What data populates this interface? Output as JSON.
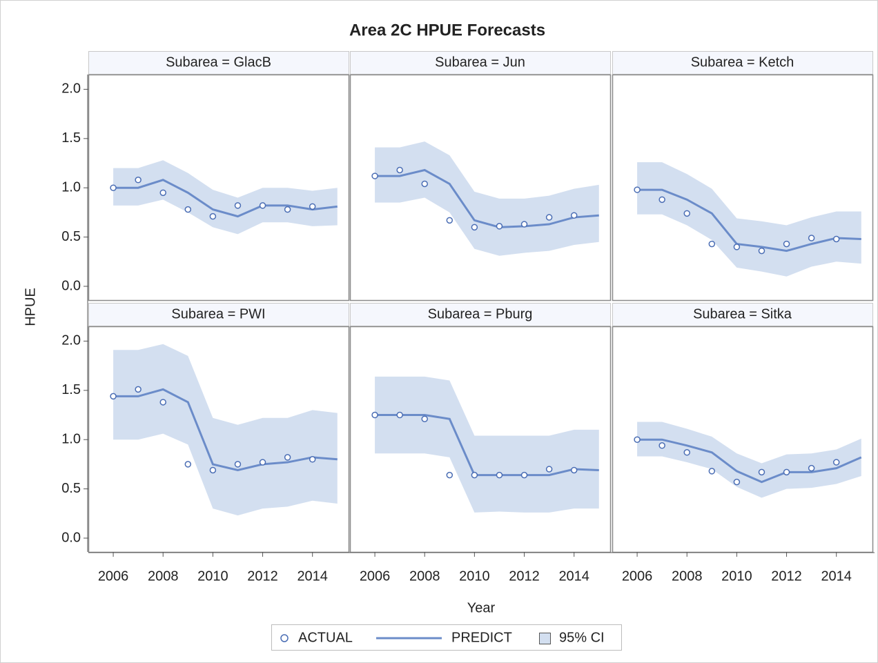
{
  "chart_data": {
    "type": "line",
    "title": "Area 2C HPUE Forecasts",
    "x_label": "Year",
    "y_label": "HPUE",
    "x": [
      2006,
      2007,
      2008,
      2009,
      2010,
      2011,
      2012,
      2013,
      2014,
      2015
    ],
    "xlim": [
      2005,
      2015.45
    ],
    "xticks": [
      2006,
      2008,
      2010,
      2012,
      2014
    ],
    "ylim": [
      -0.14,
      2.15
    ],
    "yticks": [
      {
        "value": 0,
        "label": "0.0"
      },
      0.5,
      {
        "value": 1,
        "label": "1.0"
      },
      1.5,
      {
        "value": 2,
        "label": "2.0"
      }
    ],
    "series": [
      {
        "name": "ACTUAL",
        "color": "#4a6db4"
      },
      {
        "name": "PREDICT",
        "color": "#6b8cc9"
      },
      {
        "name": "95% CI",
        "color": "#d3dff0"
      }
    ],
    "panels": [
      {
        "title": "Subarea = GlacB",
        "actual": [
          1.0,
          1.08,
          0.95,
          0.78,
          0.71,
          0.82,
          0.82,
          0.78,
          0.81,
          null
        ],
        "predict": [
          1.0,
          1.0,
          1.08,
          0.95,
          0.78,
          0.71,
          0.82,
          0.82,
          0.78,
          0.81
        ],
        "ci_lower": [
          0.82,
          0.82,
          0.88,
          0.75,
          0.6,
          0.53,
          0.65,
          0.65,
          0.61,
          0.62
        ],
        "ci_upper": [
          1.2,
          1.2,
          1.28,
          1.15,
          0.98,
          0.9,
          1.0,
          1.0,
          0.97,
          1.0
        ]
      },
      {
        "title": "Subarea = Jun",
        "actual": [
          1.12,
          1.18,
          1.04,
          0.67,
          0.6,
          0.61,
          0.63,
          0.7,
          0.72,
          null
        ],
        "predict": [
          1.12,
          1.12,
          1.18,
          1.04,
          0.67,
          0.6,
          0.61,
          0.63,
          0.7,
          0.72
        ],
        "ci_lower": [
          0.85,
          0.85,
          0.9,
          0.75,
          0.38,
          0.31,
          0.34,
          0.36,
          0.42,
          0.45
        ],
        "ci_upper": [
          1.41,
          1.41,
          1.47,
          1.33,
          0.96,
          0.89,
          0.89,
          0.92,
          0.99,
          1.03
        ]
      },
      {
        "title": "Subarea = Ketch",
        "actual": [
          0.98,
          0.88,
          0.74,
          0.43,
          0.4,
          0.36,
          0.43,
          0.49,
          0.48,
          null
        ],
        "predict": [
          0.98,
          0.98,
          0.88,
          0.74,
          0.43,
          0.4,
          0.36,
          0.43,
          0.49,
          0.48
        ],
        "ci_lower": [
          0.73,
          0.73,
          0.62,
          0.47,
          0.19,
          0.15,
          0.1,
          0.2,
          0.25,
          0.23
        ],
        "ci_upper": [
          1.26,
          1.26,
          1.14,
          0.99,
          0.69,
          0.66,
          0.62,
          0.7,
          0.76,
          0.76
        ]
      },
      {
        "title": "Subarea = PWI",
        "actual": [
          1.44,
          1.51,
          1.38,
          0.75,
          0.69,
          0.75,
          0.77,
          0.82,
          0.8,
          null
        ],
        "predict": [
          1.44,
          1.44,
          1.51,
          1.38,
          0.75,
          0.69,
          0.75,
          0.77,
          0.82,
          0.8
        ],
        "ci_lower": [
          1.0,
          1.0,
          1.06,
          0.95,
          0.3,
          0.23,
          0.3,
          0.32,
          0.38,
          0.35
        ],
        "ci_upper": [
          1.91,
          1.91,
          1.97,
          1.85,
          1.22,
          1.15,
          1.22,
          1.22,
          1.3,
          1.27
        ]
      },
      {
        "title": "Subarea = Pburg",
        "actual": [
          1.25,
          1.25,
          1.21,
          0.64,
          0.64,
          0.64,
          0.64,
          0.7,
          0.69,
          null
        ],
        "predict": [
          1.25,
          1.25,
          1.25,
          1.21,
          0.64,
          0.64,
          0.64,
          0.64,
          0.7,
          0.69
        ],
        "ci_lower": [
          0.86,
          0.86,
          0.86,
          0.82,
          0.26,
          0.27,
          0.26,
          0.26,
          0.3,
          0.3
        ],
        "ci_upper": [
          1.64,
          1.64,
          1.64,
          1.6,
          1.04,
          1.04,
          1.04,
          1.04,
          1.1,
          1.1
        ]
      },
      {
        "title": "Subarea = Sitka",
        "actual": [
          1.0,
          0.94,
          0.87,
          0.68,
          0.57,
          0.67,
          0.67,
          0.71,
          0.77,
          null
        ],
        "predict": [
          1.0,
          1.0,
          0.94,
          0.87,
          0.68,
          0.57,
          0.67,
          0.67,
          0.71,
          0.82
        ],
        "ci_lower": [
          0.83,
          0.83,
          0.77,
          0.7,
          0.52,
          0.41,
          0.5,
          0.51,
          0.55,
          0.63
        ],
        "ci_upper": [
          1.18,
          1.18,
          1.11,
          1.03,
          0.86,
          0.76,
          0.85,
          0.86,
          0.9,
          1.01
        ]
      }
    ]
  }
}
